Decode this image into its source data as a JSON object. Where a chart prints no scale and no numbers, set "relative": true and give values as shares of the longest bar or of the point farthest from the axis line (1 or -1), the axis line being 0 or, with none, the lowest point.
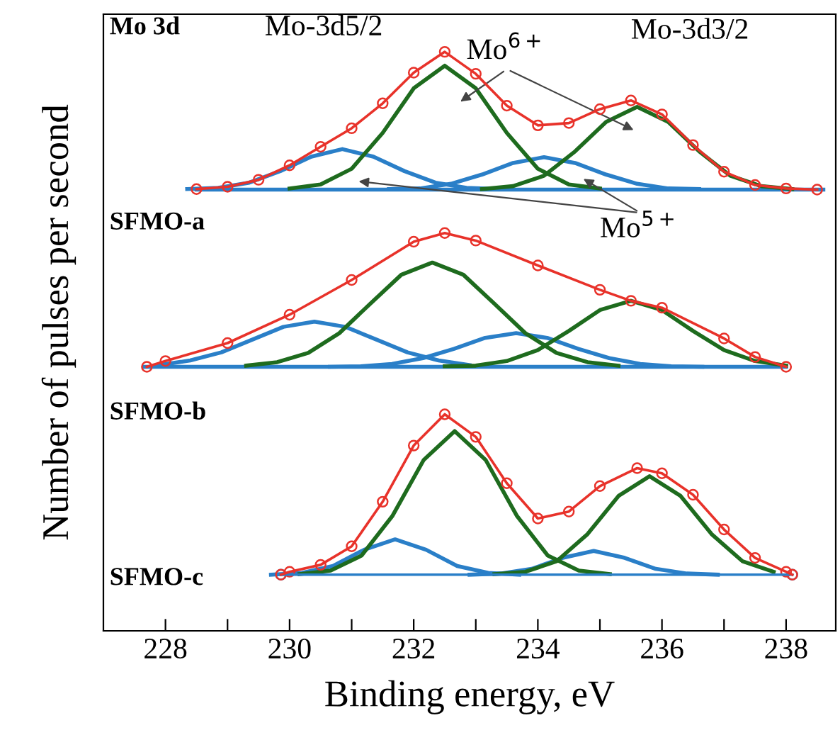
{
  "chart_data": {
    "type": "line",
    "relative": true,
    "xlabel": "Binding energy, eV",
    "ylabel": "Number of pulses per second",
    "xlim": [
      227,
      238.8
    ],
    "xticks": [
      228,
      {
        "value": 229,
        "label": null
      },
      230,
      {
        "value": 231,
        "label": null
      },
      232,
      {
        "value": 233,
        "label": null
      },
      234,
      {
        "value": 235,
        "label": null
      },
      236,
      {
        "value": 237,
        "label": null
      },
      238
    ],
    "grid": false,
    "legend": false,
    "annotations": [
      "Mo 3d",
      "Mo-3d5/2",
      "Mo$^{6+}$",
      "Mo-3d3/2",
      "Mo$^{5+}$",
      "SFMO-a",
      "SFMO-b",
      "SFMO-c"
    ],
    "series": [
      {
        "color": "#2a7fc8",
        "x": [
          228.5,
          238.6
        ],
        "values": [
          0.762,
          0.762
        ]
      },
      {
        "color": "#2a7fc8",
        "x": [
          228.35,
          228.85,
          229.35,
          229.85,
          230.35,
          230.85,
          231.35,
          231.85,
          232.35,
          232.85,
          233.35
        ],
        "values": [
          0.763,
          0.765,
          0.774,
          0.794,
          0.819,
          0.832,
          0.819,
          0.794,
          0.774,
          0.765,
          0.763
        ]
      },
      {
        "color": "#2a7fc8",
        "x": [
          231.6,
          232.1,
          232.6,
          233.1,
          233.6,
          234.1,
          234.6,
          235.1,
          235.6,
          236.1,
          236.6
        ],
        "values": [
          0.763,
          0.764,
          0.772,
          0.788,
          0.808,
          0.818,
          0.808,
          0.788,
          0.772,
          0.764,
          0.763
        ]
      },
      {
        "color": "#1e6b1e",
        "x": [
          230,
          230.5,
          231,
          231.5,
          232,
          232.5,
          233,
          233.5,
          234,
          234.5,
          235
        ],
        "values": [
          0.764,
          0.771,
          0.798,
          0.86,
          0.937,
          0.976,
          0.937,
          0.86,
          0.798,
          0.771,
          0.764
        ]
      },
      {
        "color": "#1e6b1e",
        "x": [
          233.1,
          233.6,
          234.1,
          234.6,
          235.1,
          235.6,
          236.1,
          236.6,
          237.1,
          237.6,
          238.1
        ],
        "values": [
          0.763,
          0.768,
          0.786,
          0.828,
          0.879,
          0.905,
          0.879,
          0.828,
          0.786,
          0.768,
          0.763
        ]
      },
      {
        "color": "#e8322a",
        "marker": "circle",
        "x": [
          228.5,
          229,
          229.5,
          230,
          230.5,
          231,
          231.5,
          232,
          232.5,
          233,
          233.5,
          234,
          234.5,
          235,
          235.5,
          236,
          236.5,
          237,
          237.5,
          238,
          238.5
        ],
        "values": [
          0.763,
          0.767,
          0.779,
          0.804,
          0.836,
          0.868,
          0.911,
          0.964,
          1.0,
          0.962,
          0.907,
          0.873,
          0.877,
          0.901,
          0.916,
          0.892,
          0.839,
          0.793,
          0.77,
          0.764,
          0.762
        ]
      },
      {
        "color": "#2a7fc8",
        "x": [
          227.66,
          238.0
        ],
        "values": [
          0.456,
          0.456
        ]
      },
      {
        "color": "#2a7fc8",
        "x": [
          227.9,
          228.4,
          228.9,
          229.4,
          229.9,
          230.4,
          230.9,
          231.4,
          231.9,
          232.4,
          232.9
        ],
        "values": [
          0.459,
          0.467,
          0.481,
          0.503,
          0.525,
          0.534,
          0.525,
          0.503,
          0.481,
          0.467,
          0.459
        ]
      },
      {
        "color": "#2a7fc8",
        "x": [
          230.65,
          231.15,
          231.65,
          232.15,
          232.65,
          233.15,
          233.65,
          234.15,
          234.65,
          235.15,
          235.65,
          236.15,
          236.65
        ],
        "values": [
          0.456,
          0.457,
          0.461,
          0.471,
          0.487,
          0.506,
          0.514,
          0.506,
          0.487,
          0.471,
          0.461,
          0.457,
          0.456
        ]
      },
      {
        "color": "#1e6b1e",
        "x": [
          229.3,
          229.8,
          230.3,
          230.8,
          231.3,
          231.8,
          232.3,
          232.8,
          233.3,
          233.8,
          234.3,
          234.8,
          235.3
        ],
        "values": [
          0.458,
          0.464,
          0.48,
          0.514,
          0.565,
          0.615,
          0.636,
          0.615,
          0.565,
          0.514,
          0.48,
          0.464,
          0.458
        ]
      },
      {
        "color": "#1e6b1e",
        "x": [
          232.5,
          233,
          233.5,
          234,
          234.5,
          235,
          235.5,
          236,
          236.5,
          237,
          237.5,
          238
        ],
        "values": [
          0.457,
          0.458,
          0.466,
          0.485,
          0.518,
          0.554,
          0.57,
          0.554,
          0.518,
          0.485,
          0.466,
          0.458
        ]
      },
      {
        "color": "#e8322a",
        "marker": "circle",
        "x": [
          227.7,
          228,
          229,
          230,
          231,
          232,
          232.5,
          233,
          234,
          235,
          235.5,
          236,
          237,
          237.5,
          238
        ],
        "values": [
          0.456,
          0.466,
          0.497,
          0.546,
          0.606,
          0.672,
          0.687,
          0.674,
          0.631,
          0.589,
          0.57,
          0.558,
          0.505,
          0.473,
          0.456
        ]
      },
      {
        "color": "#2a7fc8",
        "marker": "circle",
        "x": [
          229.86,
          238.1
        ],
        "values": [
          0.097,
          0.097
        ]
      },
      {
        "color": "#2a7fc8",
        "x": [
          229.7,
          230.2,
          230.7,
          231.2,
          231.7,
          232.2,
          232.7,
          233.2,
          233.7
        ],
        "values": [
          0.097,
          0.1,
          0.112,
          0.14,
          0.158,
          0.14,
          0.112,
          0.1,
          0.097
        ]
      },
      {
        "color": "#2a7fc8",
        "x": [
          232.9,
          233.4,
          233.9,
          234.4,
          234.9,
          235.4,
          235.9,
          236.4,
          236.9
        ],
        "values": [
          0.097,
          0.099,
          0.107,
          0.126,
          0.138,
          0.126,
          0.107,
          0.099,
          0.097
        ]
      },
      {
        "color": "#1e6b1e",
        "x": [
          230.16,
          230.66,
          231.16,
          231.66,
          232.16,
          232.66,
          233.16,
          233.66,
          234.16,
          234.66,
          235.16
        ],
        "values": [
          0.098,
          0.104,
          0.13,
          0.199,
          0.295,
          0.345,
          0.295,
          0.199,
          0.13,
          0.104,
          0.098
        ]
      },
      {
        "color": "#1e6b1e",
        "x": [
          233.3,
          233.8,
          234.3,
          234.8,
          235.3,
          235.8,
          236.3,
          236.8,
          237.3,
          237.8
        ],
        "values": [
          0.098,
          0.102,
          0.12,
          0.167,
          0.233,
          0.267,
          0.233,
          0.167,
          0.12,
          0.102
        ]
      },
      {
        "color": "#e8322a",
        "marker": "circle",
        "x": [
          229.86,
          230,
          230.5,
          231,
          231.5,
          232,
          232.5,
          233,
          233.5,
          234,
          234.5,
          235,
          235.6,
          236,
          236.5,
          237,
          237.5,
          238,
          238.1
        ],
        "values": [
          0.097,
          0.102,
          0.114,
          0.146,
          0.223,
          0.32,
          0.374,
          0.335,
          0.255,
          0.194,
          0.206,
          0.25,
          0.281,
          0.272,
          0.235,
          0.175,
          0.126,
          0.102,
          0.097
        ]
      }
    ]
  }
}
